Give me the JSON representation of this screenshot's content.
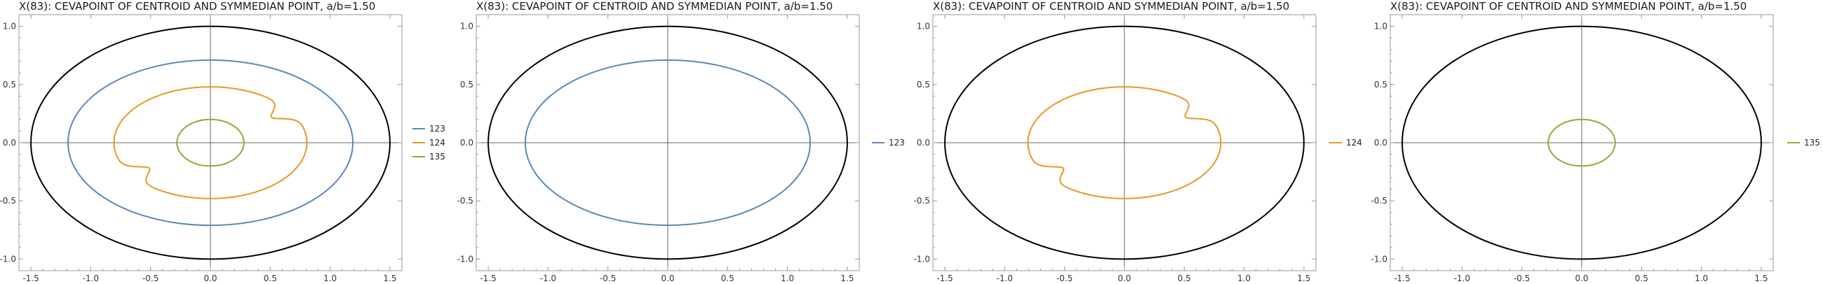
{
  "colors": {
    "background": "#ffffff",
    "frame": "#9a9a9a",
    "axis": "#666666",
    "black_ellipse": "#000000",
    "s123": "#5b87b8",
    "s124": "#e39a25",
    "s135": "#8aad35"
  },
  "chart_data": [
    {
      "type": "line",
      "title": "X(83): CEVAPOINT OF CENTROID AND SYMMEDIAN POINT, a/b=1.50",
      "xlim": [
        -1.6,
        1.6
      ],
      "ylim": [
        -1.1,
        1.1
      ],
      "x_ticks": [
        "-1.5",
        "-1.0",
        "-0.5",
        "0.0",
        "0.5",
        "1.0",
        "1.5"
      ],
      "y_ticks": [
        "-1.0",
        "-0.5",
        "0.0",
        "0.5",
        "1.0"
      ],
      "grid": false,
      "legend_position": "right",
      "base_ellipse": {
        "a": 1.5,
        "b": 1.0
      },
      "series": [
        {
          "name": "123",
          "color": "#5b87b8",
          "shape": "ellipse",
          "rx": 1.19,
          "ry": 0.71
        },
        {
          "name": "124",
          "color": "#e39a25",
          "shape": "cardioid",
          "cx": 0.0,
          "r": 0.5
        },
        {
          "name": "135",
          "color": "#8aad35",
          "shape": "ellipse",
          "rx": 0.28,
          "ry": 0.2
        }
      ]
    },
    {
      "type": "line",
      "title": "X(83): CEVAPOINT OF CENTROID AND SYMMEDIAN POINT, a/b=1.50",
      "xlim": [
        -1.6,
        1.6
      ],
      "ylim": [
        -1.1,
        1.1
      ],
      "x_ticks": [
        "-1.5",
        "-1.0",
        "-0.5",
        "0.0",
        "0.5",
        "1.0",
        "1.5"
      ],
      "y_ticks": [
        "-1.0",
        "-0.5",
        "0.0",
        "0.5",
        "1.0"
      ],
      "grid": false,
      "legend_position": "right",
      "base_ellipse": {
        "a": 1.5,
        "b": 1.0
      },
      "series": [
        {
          "name": "123",
          "color": "#5b87b8",
          "shape": "ellipse",
          "rx": 1.19,
          "ry": 0.71
        }
      ]
    },
    {
      "type": "line",
      "title": "X(83): CEVAPOINT OF CENTROID AND SYMMEDIAN POINT, a/b=1.50",
      "xlim": [
        -1.6,
        1.6
      ],
      "ylim": [
        -1.1,
        1.1
      ],
      "x_ticks": [
        "-1.5",
        "-1.0",
        "-0.5",
        "0.0",
        "0.5",
        "1.0",
        "1.5"
      ],
      "y_ticks": [
        "-1.0",
        "-0.5",
        "0.0",
        "0.5",
        "1.0"
      ],
      "grid": false,
      "legend_position": "right",
      "base_ellipse": {
        "a": 1.5,
        "b": 1.0
      },
      "series": [
        {
          "name": "124",
          "color": "#e39a25",
          "shape": "cardioid",
          "cx": 0.0,
          "r": 0.5
        }
      ]
    },
    {
      "type": "line",
      "title": "X(83): CEVAPOINT OF CENTROID AND SYMMEDIAN POINT, a/b=1.50",
      "xlim": [
        -1.6,
        1.6
      ],
      "ylim": [
        -1.1,
        1.1
      ],
      "x_ticks": [
        "-1.5",
        "-1.0",
        "-0.5",
        "0.0",
        "0.5",
        "1.0",
        "1.5"
      ],
      "y_ticks": [
        "-1.0",
        "-0.5",
        "0.0",
        "0.5",
        "1.0"
      ],
      "grid": false,
      "legend_position": "right",
      "base_ellipse": {
        "a": 1.5,
        "b": 1.0
      },
      "series": [
        {
          "name": "135",
          "color": "#8aad35",
          "shape": "ellipse",
          "rx": 0.28,
          "ry": 0.2
        }
      ]
    }
  ]
}
